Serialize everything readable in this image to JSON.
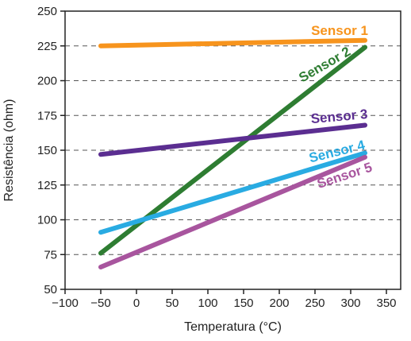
{
  "chart_data": {
    "type": "line",
    "title": "",
    "xlabel": "Temperatura (°C)",
    "ylabel": "Resistência (ohm)",
    "xlim": [
      -100,
      370
    ],
    "ylim": [
      50,
      250
    ],
    "xticks": [
      -100,
      -50,
      0,
      50,
      100,
      150,
      200,
      250,
      300,
      350
    ],
    "xtick_labels": [
      "−100",
      "−50",
      "0",
      "50",
      "100",
      "150",
      "200",
      "250",
      "300",
      "350"
    ],
    "yticks": [
      50,
      75,
      100,
      125,
      150,
      175,
      200,
      225,
      250
    ],
    "ytick_labels": [
      "50",
      "75",
      "100",
      "125",
      "150",
      "175",
      "200",
      "225",
      "250"
    ],
    "grid": "horizontal dashed",
    "series": [
      {
        "name": "Sensor 1",
        "color": "#F7941D",
        "x": [
          -50,
          320
        ],
        "y": [
          225,
          229
        ]
      },
      {
        "name": "Sensor 2",
        "color": "#2E7D32",
        "x": [
          -50,
          320
        ],
        "y": [
          76,
          224
        ]
      },
      {
        "name": "Sensor 3",
        "color": "#5B2E91",
        "x": [
          -50,
          320
        ],
        "y": [
          147,
          168
        ]
      },
      {
        "name": "Sensor 4",
        "color": "#29ABE2",
        "x": [
          -50,
          320
        ],
        "y": [
          91,
          148
        ]
      },
      {
        "name": "Sensor 5",
        "color": "#A8559E",
        "x": [
          -50,
          320
        ],
        "y": [
          66,
          145
        ]
      }
    ]
  }
}
